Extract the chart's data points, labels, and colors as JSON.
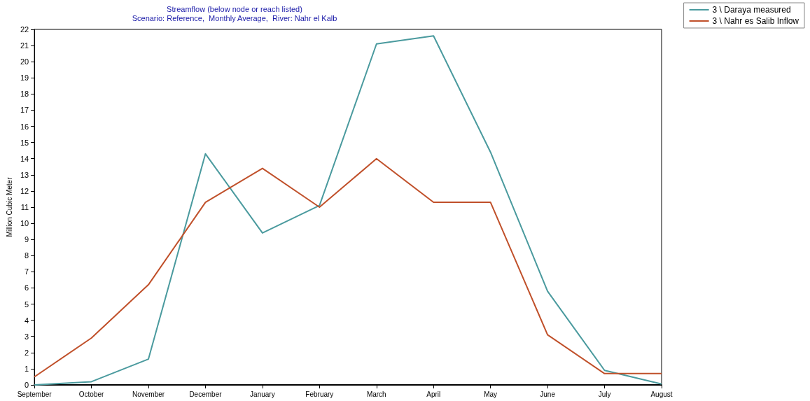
{
  "chart_data": {
    "type": "line",
    "title": "Streamflow (below node or reach listed)",
    "subtitle": "Scenario: Reference,  Monthly Average,  River: Nahr el Kalb",
    "ylabel": "Million Cubic Meter",
    "categories": [
      "September",
      "October",
      "November",
      "December",
      "January",
      "February",
      "March",
      "April",
      "May",
      "June",
      "July",
      "August"
    ],
    "series": [
      {
        "name": "3 \\ Daraya measured",
        "color": "#4a9a9e",
        "values": [
          0,
          0.2,
          1.6,
          14.3,
          9.4,
          11.1,
          21.1,
          21.6,
          14.4,
          5.8,
          0.9,
          0.05
        ]
      },
      {
        "name": "3 \\ Nahr es Salib Inflow",
        "color": "#c0502a",
        "values": [
          0.5,
          2.9,
          6.2,
          11.3,
          13.4,
          11.0,
          14.0,
          11.3,
          11.3,
          3.1,
          0.7,
          0.7
        ]
      }
    ],
    "ylim": [
      0,
      22
    ],
    "yticks": [
      0,
      1,
      2,
      3,
      4,
      5,
      6,
      7,
      8,
      9,
      10,
      11,
      12,
      13,
      14,
      15,
      16,
      17,
      18,
      19,
      20,
      21,
      22
    ],
    "grid": false,
    "legend": "top right",
    "marker": "none",
    "line_style": "solid"
  }
}
